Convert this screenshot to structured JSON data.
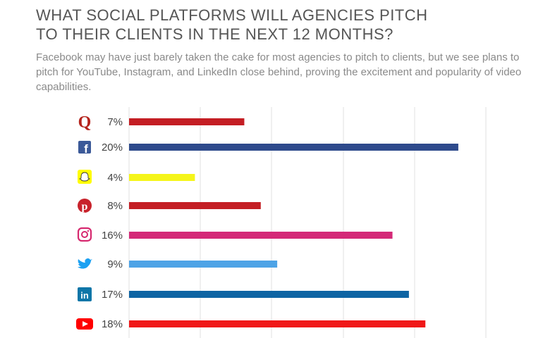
{
  "header": {
    "title_line1": "WHAT SOCIAL PLATFORMS WILL AGENCIES PITCH",
    "title_line2": "TO THEIR CLIENTS IN THE NEXT 12 MONTHS?",
    "subtitle": "Facebook may have just barely taken the cake for most agencies to pitch to clients, but we see plans to pitch for YouTube, Instagram, and LinkedIn close behind, proving the excitement and popularity of video capabilities."
  },
  "chart_data": {
    "type": "bar",
    "orientation": "horizontal",
    "title": "WHAT SOCIAL PLATFORMS WILL AGENCIES PITCH TO THEIR CLIENTS IN THE NEXT 12 MONTHS?",
    "categories": [
      "quora-icon",
      "facebook-icon",
      "snapchat-icon",
      "pinterest-icon",
      "instagram-icon",
      "twitter-icon",
      "linkedin-icon",
      "youtube-icon"
    ],
    "values": [
      7,
      20,
      4,
      8,
      16,
      9,
      17,
      18
    ],
    "labels": [
      "7%",
      "20%",
      "4%",
      "8%",
      "16%",
      "9%",
      "17%",
      "18%"
    ],
    "colors": [
      "#c41e24",
      "#2e4a8c",
      "#f5f51a",
      "#c41e24",
      "#d42a78",
      "#4da3e6",
      "#0e64a3",
      "#f01818"
    ],
    "xlim": [
      0,
      26
    ],
    "grid": true,
    "xlabel": "",
    "ylabel": ""
  }
}
